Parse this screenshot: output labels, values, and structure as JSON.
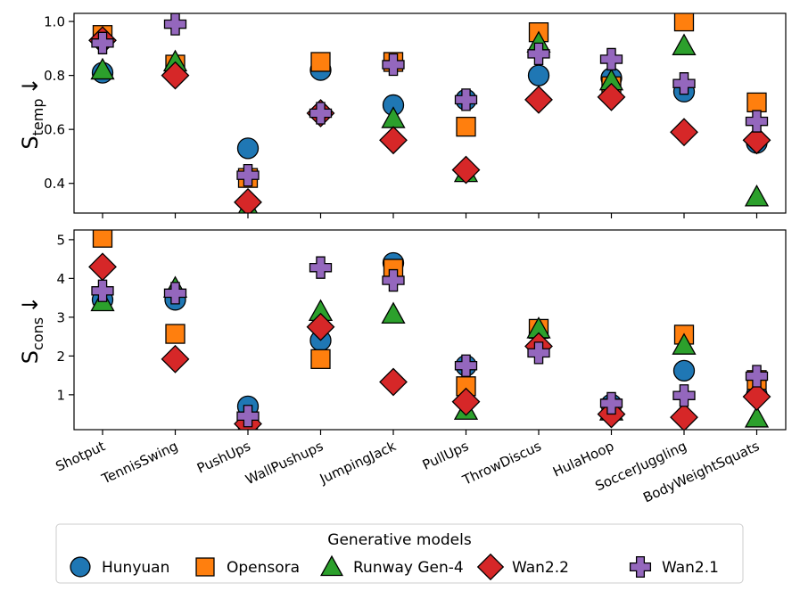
{
  "chart_data": [
    {
      "type": "scatter",
      "ylabel_main": "S",
      "ylabel_sub": "temp",
      "ylabel_arrow": "↓",
      "ylim": [
        0.29,
        1.03
      ],
      "yticks": [
        0.4,
        0.6,
        0.8,
        1.0
      ],
      "ytick_labels": [
        "0.4",
        "0.6",
        "0.8",
        "1.0"
      ],
      "grid": false,
      "series": [
        {
          "name": "Hunyuan",
          "values": [
            0.81,
            null,
            0.53,
            0.82,
            0.69,
            0.71,
            0.8,
            0.79,
            0.74,
            0.55
          ]
        },
        {
          "name": "Opensora",
          "values": [
            0.95,
            0.84,
            0.42,
            0.85,
            0.85,
            0.61,
            0.96,
            0.76,
            1.0,
            0.7
          ]
        },
        {
          "name": "Runway Gen-4",
          "values": [
            0.82,
            0.85,
            0.31,
            null,
            0.64,
            0.44,
            0.92,
            0.78,
            0.91,
            0.35
          ]
        },
        {
          "name": "Wan2.2",
          "values": [
            0.93,
            0.8,
            0.33,
            0.66,
            0.56,
            0.45,
            0.71,
            0.72,
            0.59,
            0.56
          ]
        },
        {
          "name": "Wan2.1",
          "values": [
            0.92,
            0.99,
            0.43,
            0.66,
            0.84,
            0.71,
            0.88,
            0.86,
            0.77,
            0.63
          ]
        }
      ]
    },
    {
      "type": "scatter",
      "ylabel_main": "S",
      "ylabel_sub": "cons",
      "ylabel_arrow": "↓",
      "ylim": [
        0.1,
        5.25
      ],
      "yticks": [
        1,
        2,
        3,
        4,
        5
      ],
      "ytick_labels": [
        "1",
        "2",
        "3",
        "4",
        "5"
      ],
      "grid": false,
      "series": [
        {
          "name": "Hunyuan",
          "values": [
            3.45,
            3.45,
            0.7,
            2.4,
            4.4,
            1.75,
            null,
            0.75,
            1.62,
            1.0
          ]
        },
        {
          "name": "Opensora",
          "values": [
            5.05,
            2.57,
            0.2,
            1.92,
            4.25,
            1.22,
            2.7,
            0.65,
            2.55,
            1.38
          ]
        },
        {
          "name": "Runway Gen-4",
          "values": [
            3.4,
            3.75,
            0.18,
            3.15,
            3.08,
            0.6,
            2.7,
            0.58,
            2.28,
            0.4
          ]
        },
        {
          "name": "Wan2.2",
          "values": [
            4.3,
            1.92,
            0.25,
            2.75,
            1.33,
            0.82,
            2.25,
            0.5,
            0.42,
            0.95
          ]
        },
        {
          "name": "Wan2.1",
          "values": [
            3.68,
            3.62,
            0.45,
            4.28,
            3.95,
            1.75,
            2.08,
            0.78,
            0.98,
            1.48
          ]
        }
      ]
    }
  ],
  "categories": [
    "Shotput",
    "TennisSwing",
    "PushUps",
    "WallPushups",
    "JumpingJack",
    "PullUps",
    "ThrowDiscus",
    "HulaHoop",
    "SoccerJuggling",
    "BodyWeightSquats"
  ],
  "legend": {
    "title": "Generative models",
    "items": [
      {
        "name": "Hunyuan",
        "marker": "circle-marker-icon",
        "color": "#1f77b4"
      },
      {
        "name": "Opensora",
        "marker": "square-marker-icon",
        "color": "#ff7f0e"
      },
      {
        "name": "Runway Gen-4",
        "marker": "triangle-marker-icon",
        "color": "#2ca02c"
      },
      {
        "name": "Wan2.2",
        "marker": "diamond-marker-icon",
        "color": "#d62728"
      },
      {
        "name": "Wan2.1",
        "marker": "plus-marker-icon",
        "color": "#9467bd"
      }
    ]
  }
}
